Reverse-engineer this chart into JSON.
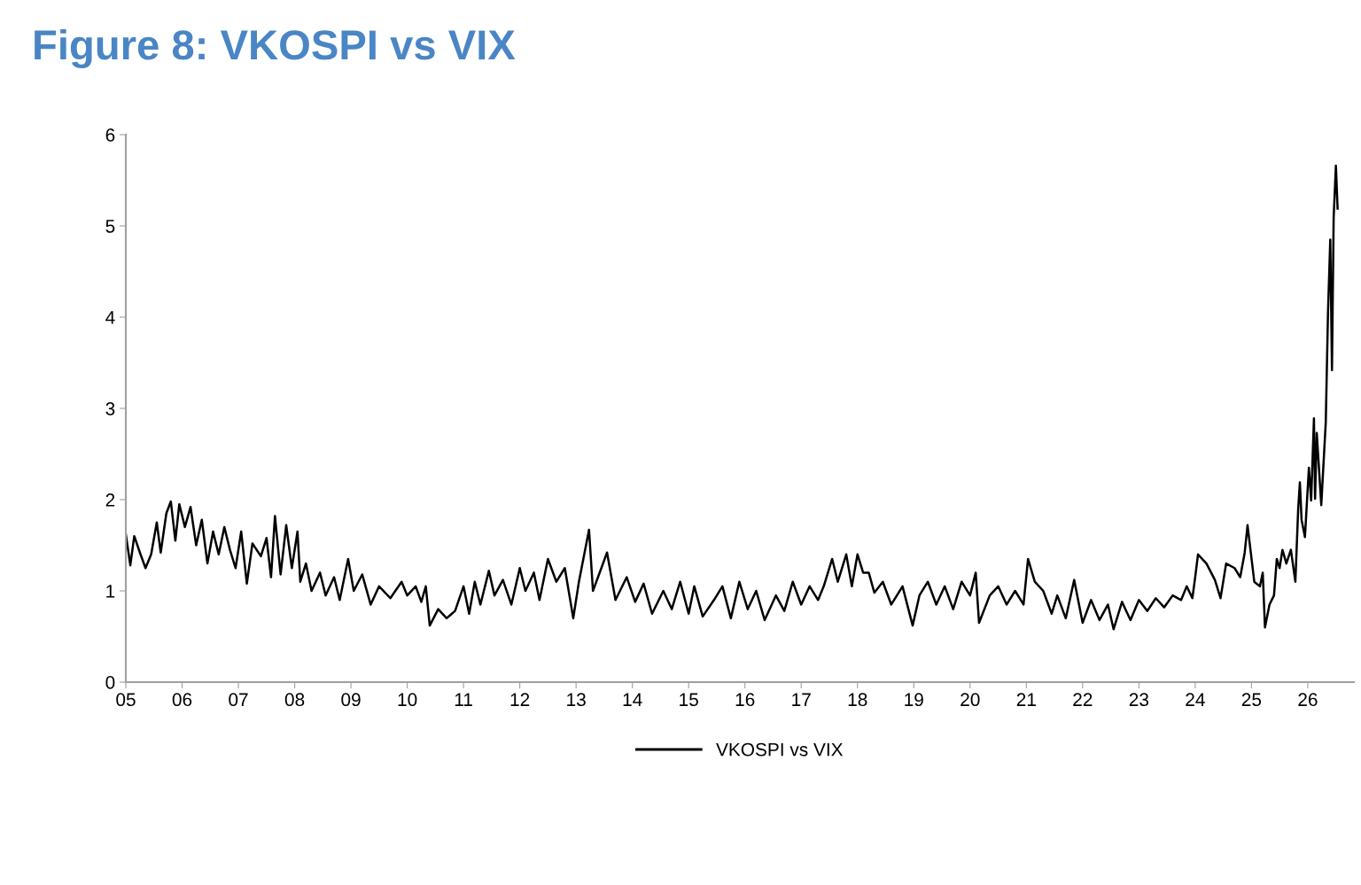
{
  "chart_data": {
    "type": "line",
    "title": "Figure 8: VKOSPI vs VIX",
    "xlim": [
      2005,
      2026.82
    ],
    "ylim": [
      0,
      6
    ],
    "yticks": [
      0,
      1,
      2,
      3,
      4,
      5,
      6
    ],
    "xticks": [
      {
        "value": 2005,
        "label": "05"
      },
      {
        "value": 2006,
        "label": "06"
      },
      {
        "value": 2007,
        "label": "07"
      },
      {
        "value": 2008,
        "label": "08"
      },
      {
        "value": 2009,
        "label": "09"
      },
      {
        "value": 2010,
        "label": "10"
      },
      {
        "value": 2011,
        "label": "11"
      },
      {
        "value": 2012,
        "label": "12"
      },
      {
        "value": 2013,
        "label": "13"
      },
      {
        "value": 2014,
        "label": "14"
      },
      {
        "value": 2015,
        "label": "15"
      },
      {
        "value": 2016,
        "label": "16"
      },
      {
        "value": 2017,
        "label": "17"
      },
      {
        "value": 2018,
        "label": "18"
      },
      {
        "value": 2019,
        "label": "19"
      },
      {
        "value": 2020,
        "label": "20"
      },
      {
        "value": 2021,
        "label": "21"
      },
      {
        "value": 2022,
        "label": "22"
      },
      {
        "value": 2023,
        "label": "23"
      },
      {
        "value": 2024,
        "label": "24"
      },
      {
        "value": 2025,
        "label": "25"
      },
      {
        "value": 2026,
        "label": "26"
      }
    ],
    "grid": false,
    "legend": "bottom",
    "marker": "none",
    "line_style": "solid",
    "series": [
      {
        "name": "VKOSPI vs VIX",
        "color": "#000000",
        "x": [
          2005.0,
          2005.08,
          2005.15,
          2005.25,
          2005.35,
          2005.45,
          2005.55,
          2005.62,
          2005.72,
          2005.8,
          2005.88,
          2005.95,
          2006.05,
          2006.15,
          2006.25,
          2006.35,
          2006.45,
          2006.55,
          2006.65,
          2006.75,
          2006.85,
          2006.95,
          2007.05,
          2007.15,
          2007.25,
          2007.4,
          2007.5,
          2007.58,
          2007.65,
          2007.75,
          2007.85,
          2007.95,
          2008.05,
          2008.1,
          2008.2,
          2008.3,
          2008.45,
          2008.55,
          2008.7,
          2008.8,
          2008.95,
          2009.05,
          2009.2,
          2009.35,
          2009.5,
          2009.7,
          2009.9,
          2010.0,
          2010.15,
          2010.25,
          2010.33,
          2010.4,
          2010.55,
          2010.7,
          2010.85,
          2011.0,
          2011.1,
          2011.2,
          2011.3,
          2011.45,
          2011.55,
          2011.7,
          2011.85,
          2012.0,
          2012.1,
          2012.25,
          2012.35,
          2012.5,
          2012.65,
          2012.8,
          2012.95,
          2013.05,
          2013.23,
          2013.3,
          2013.55,
          2013.7,
          2013.9,
          2014.05,
          2014.2,
          2014.35,
          2014.55,
          2014.7,
          2014.85,
          2015.0,
          2015.1,
          2015.25,
          2015.45,
          2015.6,
          2015.75,
          2015.9,
          2016.05,
          2016.2,
          2016.35,
          2016.55,
          2016.7,
          2016.85,
          2017.0,
          2017.15,
          2017.3,
          2017.4,
          2017.55,
          2017.65,
          2017.8,
          2017.9,
          2018.0,
          2018.1,
          2018.2,
          2018.3,
          2018.45,
          2018.6,
          2018.8,
          2018.98,
          2019.1,
          2019.25,
          2019.4,
          2019.55,
          2019.7,
          2019.85,
          2020.0,
          2020.1,
          2020.16,
          2020.35,
          2020.5,
          2020.65,
          2020.8,
          2020.95,
          2021.03,
          2021.15,
          2021.3,
          2021.45,
          2021.55,
          2021.7,
          2021.85,
          2022.0,
          2022.15,
          2022.3,
          2022.45,
          2022.55,
          2022.7,
          2022.85,
          2023.0,
          2023.15,
          2023.3,
          2023.45,
          2023.6,
          2023.75,
          2023.85,
          2023.95,
          2024.0,
          2024.05,
          2024.2,
          2024.35,
          2024.45,
          2024.55,
          2024.7,
          2024.8,
          2024.88,
          2024.93,
          2025.05,
          2025.15,
          2025.2,
          2025.24,
          2025.32,
          2025.4,
          2025.45,
          2025.5,
          2025.55,
          2025.62,
          2025.7,
          2025.78,
          2025.83,
          2025.86,
          2025.89,
          2025.95,
          2026.02,
          2026.06,
          2026.11,
          2026.13,
          2026.16,
          2026.24,
          2026.32,
          2026.36,
          2026.4,
          2026.43,
          2026.46,
          2026.5,
          2026.53
        ],
        "values": [
          1.62,
          1.28,
          1.6,
          1.42,
          1.25,
          1.4,
          1.75,
          1.42,
          1.85,
          1.98,
          1.55,
          1.95,
          1.7,
          1.92,
          1.5,
          1.78,
          1.3,
          1.65,
          1.4,
          1.7,
          1.45,
          1.25,
          1.65,
          1.08,
          1.52,
          1.38,
          1.58,
          1.15,
          1.82,
          1.18,
          1.72,
          1.25,
          1.65,
          1.1,
          1.3,
          1.0,
          1.2,
          0.95,
          1.15,
          0.9,
          1.35,
          1.0,
          1.18,
          0.85,
          1.05,
          0.92,
          1.1,
          0.95,
          1.05,
          0.88,
          1.05,
          0.62,
          0.8,
          0.7,
          0.78,
          1.05,
          0.75,
          1.1,
          0.85,
          1.22,
          0.95,
          1.12,
          0.85,
          1.25,
          1.0,
          1.2,
          0.9,
          1.35,
          1.1,
          1.25,
          0.7,
          1.1,
          1.67,
          1.0,
          1.42,
          0.9,
          1.15,
          0.88,
          1.08,
          0.75,
          1.0,
          0.8,
          1.1,
          0.75,
          1.05,
          0.72,
          0.9,
          1.05,
          0.7,
          1.1,
          0.8,
          1.0,
          0.68,
          0.95,
          0.78,
          1.1,
          0.85,
          1.05,
          0.9,
          1.05,
          1.35,
          1.1,
          1.4,
          1.05,
          1.4,
          1.2,
          1.2,
          0.98,
          1.1,
          0.85,
          1.05,
          0.62,
          0.95,
          1.1,
          0.85,
          1.05,
          0.8,
          1.1,
          0.95,
          1.2,
          0.65,
          0.95,
          1.05,
          0.85,
          1.0,
          0.85,
          1.35,
          1.1,
          1.0,
          0.75,
          0.95,
          0.7,
          1.12,
          0.65,
          0.9,
          0.68,
          0.85,
          0.58,
          0.88,
          0.68,
          0.9,
          0.78,
          0.92,
          0.82,
          0.95,
          0.9,
          1.05,
          0.92,
          1.15,
          1.4,
          1.3,
          1.12,
          0.92,
          1.3,
          1.25,
          1.15,
          1.42,
          1.72,
          1.1,
          1.05,
          1.2,
          0.6,
          0.85,
          0.95,
          1.35,
          1.25,
          1.45,
          1.3,
          1.45,
          1.1,
          1.9,
          2.19,
          1.78,
          1.59,
          2.35,
          1.99,
          2.89,
          2.01,
          2.73,
          1.94,
          2.85,
          4.06,
          4.85,
          3.42,
          5.09,
          5.66,
          5.19
        ]
      }
    ]
  }
}
